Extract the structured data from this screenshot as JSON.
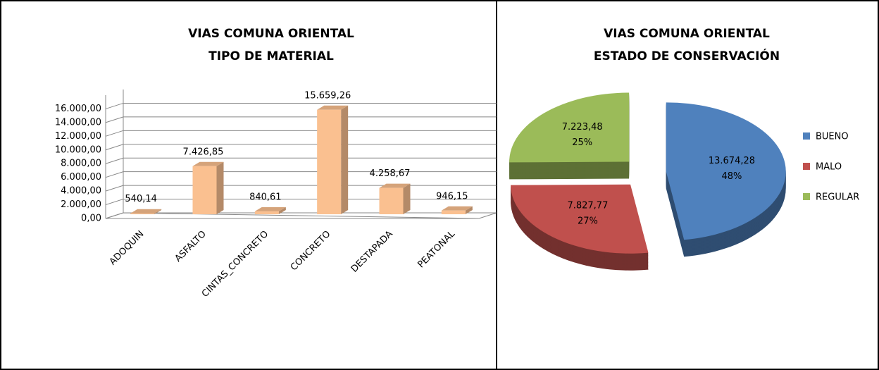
{
  "chart_data": [
    {
      "type": "bar3d",
      "title": [
        "VIAS COMUNA ORIENTAL",
        "TIPO DE MATERIAL"
      ],
      "categories": [
        "ADOQUIN",
        "ASFALTO",
        "CINTAS_CONCRETO",
        "CONCRETO",
        "DESTAPADA",
        "PEATONAL"
      ],
      "values": [
        540.14,
        7426.85,
        840.61,
        15659.26,
        4258.67,
        946.15
      ],
      "value_labels": [
        "540,14",
        "7.426,85",
        "840,61",
        "15.659,26",
        "4.258,67",
        "946,15"
      ],
      "color": "#fac090",
      "ylim": [
        0,
        18000
      ],
      "yticks": [
        {
          "value": 0,
          "label": "0,00"
        },
        {
          "value": 2000,
          "label": "2.000,00"
        },
        {
          "value": 4000,
          "label": "4.000,00"
        },
        {
          "value": 6000,
          "label": "6.000,00"
        },
        {
          "value": 8000,
          "label": "8.000,00"
        },
        {
          "value": 10000,
          "label": "10.000,00"
        },
        {
          "value": 12000,
          "label": "12.000,00"
        },
        {
          "value": 14000,
          "label": "14.000,00"
        },
        {
          "value": 16000,
          "label": "16.000,00"
        }
      ],
      "grid": true
    },
    {
      "type": "pie3d",
      "title": [
        "VIAS COMUNA ORIENTAL",
        "ESTADO DE CONSERVACIÓN"
      ],
      "categories": [
        "BUENO",
        "MALO",
        "REGULAR"
      ],
      "values": [
        13674.28,
        7827.77,
        7223.48
      ],
      "value_labels": [
        "13.674,28",
        "7.827,77",
        "7.223,48"
      ],
      "percent_labels": [
        "48%",
        "27%",
        "25%"
      ],
      "colors": [
        "#4f81bd",
        "#c0504d",
        "#9bbb59"
      ],
      "legend": "right"
    }
  ]
}
